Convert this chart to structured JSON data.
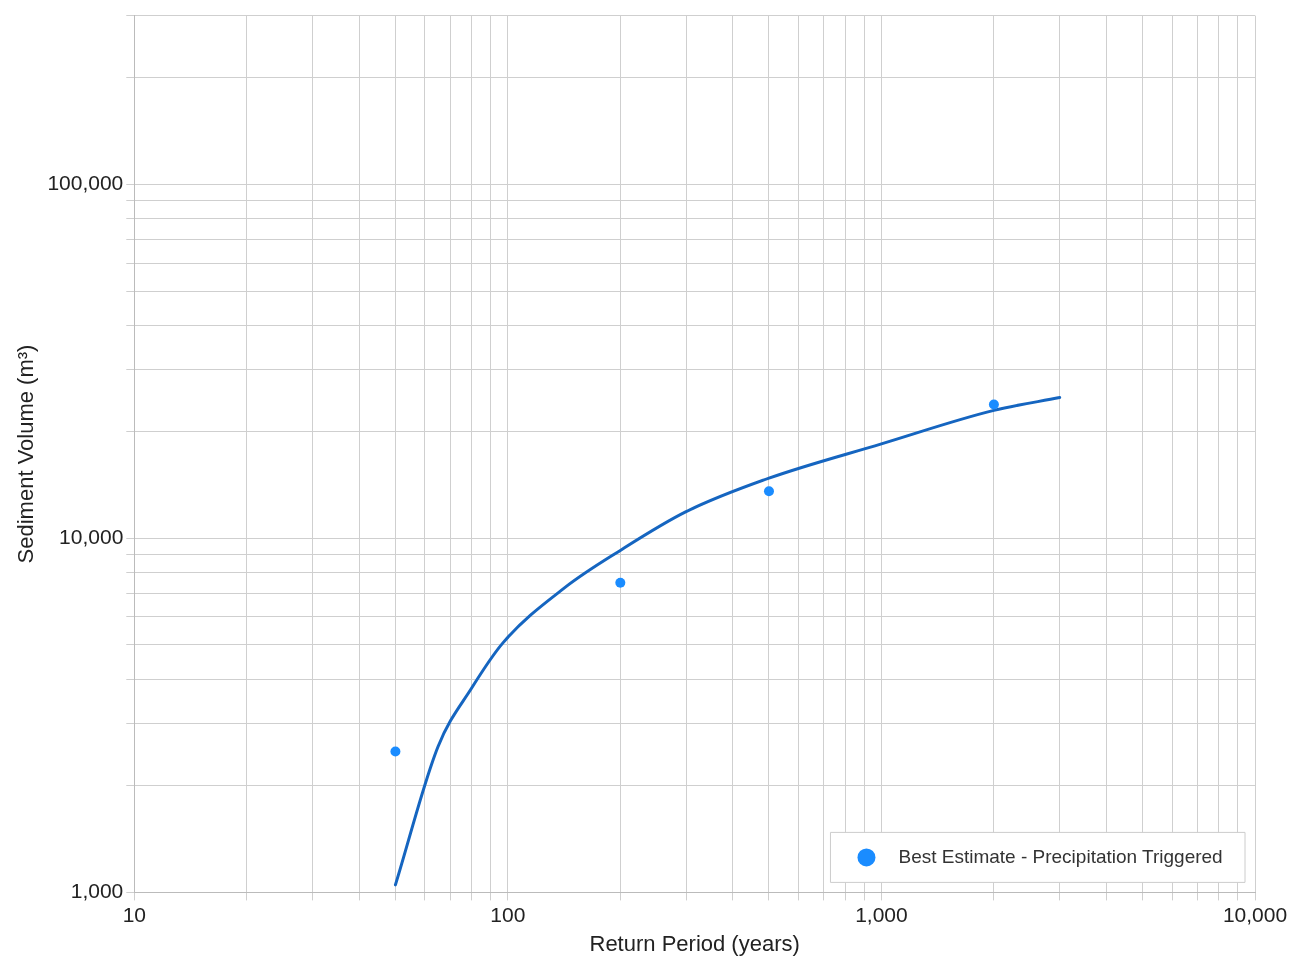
{
  "chart_data": {
    "type": "scatter",
    "xlabel": "Return Period (years)",
    "ylabel": "Sediment Volume (m³)",
    "series": [
      {
        "name": "Best Estimate - Precipitation Triggered",
        "marker": "circle",
        "color": "#1a8cff",
        "x": [
          50,
          200,
          500,
          2000
        ],
        "values": [
          2500,
          7500,
          13600,
          23900
        ]
      },
      {
        "type": "line",
        "marker": "none",
        "color": "#1565c0",
        "x": [
          50,
          65,
          80,
          97,
          142,
          200,
          300,
          500,
          1000,
          2000,
          3000
        ],
        "values": [
          1050,
          2580,
          3780,
          5070,
          7260,
          9250,
          11900,
          14800,
          18500,
          23000,
          25000
        ]
      }
    ],
    "log": "xy",
    "xlim": [
      10,
      10000
    ],
    "ylim": [
      1000,
      300000
    ],
    "xticks": [
      {
        "value": 10,
        "label": "10"
      },
      {
        "value": 20,
        "label": null
      },
      {
        "value": 30,
        "label": null
      },
      {
        "value": 40,
        "label": null
      },
      {
        "value": 50,
        "label": null
      },
      {
        "value": 60,
        "label": null
      },
      {
        "value": 70,
        "label": null
      },
      {
        "value": 80,
        "label": null
      },
      {
        "value": 90,
        "label": null
      },
      {
        "value": 100,
        "label": "100"
      },
      {
        "value": 200,
        "label": null
      },
      {
        "value": 300,
        "label": null
      },
      {
        "value": 400,
        "label": null
      },
      {
        "value": 500,
        "label": null
      },
      {
        "value": 600,
        "label": null
      },
      {
        "value": 700,
        "label": null
      },
      {
        "value": 800,
        "label": null
      },
      {
        "value": 900,
        "label": null
      },
      {
        "value": 1000,
        "label": "1,000"
      },
      {
        "value": 2000,
        "label": null
      },
      {
        "value": 3000,
        "label": null
      },
      {
        "value": 4000,
        "label": null
      },
      {
        "value": 5000,
        "label": null
      },
      {
        "value": 6000,
        "label": null
      },
      {
        "value": 7000,
        "label": null
      },
      {
        "value": 8000,
        "label": null
      },
      {
        "value": 9000,
        "label": null
      },
      {
        "value": 10000,
        "label": "10,000"
      }
    ],
    "yticks": [
      {
        "value": 1000,
        "label": "1,000"
      },
      {
        "value": 2000,
        "label": null
      },
      {
        "value": 3000,
        "label": null
      },
      {
        "value": 4000,
        "label": null
      },
      {
        "value": 5000,
        "label": null
      },
      {
        "value": 6000,
        "label": null
      },
      {
        "value": 7000,
        "label": null
      },
      {
        "value": 8000,
        "label": null
      },
      {
        "value": 9000,
        "label": null
      },
      {
        "value": 10000,
        "label": "10,000"
      },
      {
        "value": 20000,
        "label": null
      },
      {
        "value": 30000,
        "label": null
      },
      {
        "value": 40000,
        "label": null
      },
      {
        "value": 50000,
        "label": null
      },
      {
        "value": 60000,
        "label": null
      },
      {
        "value": 70000,
        "label": null
      },
      {
        "value": 80000,
        "label": null
      },
      {
        "value": 90000,
        "label": null
      },
      {
        "value": 100000,
        "label": "100,000"
      },
      {
        "value": 200000,
        "label": null
      },
      {
        "value": 300000,
        "label": null
      }
    ],
    "grid": true,
    "legend": "bottom right",
    "line_style": "solid"
  }
}
